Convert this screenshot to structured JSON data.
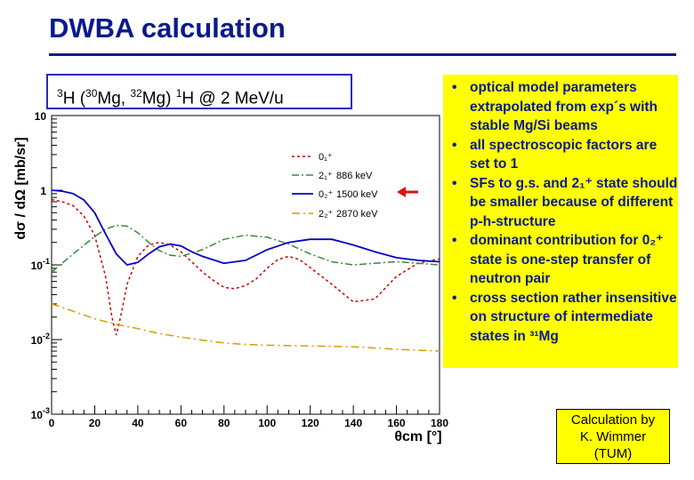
{
  "header": {
    "title": "DWBA calculation"
  },
  "reaction": {
    "t_sup": "3",
    "t": "H (",
    "mg30_sup": "30",
    "mg30": "Mg, ",
    "mg32_sup": "32",
    "mg32": "Mg) ",
    "h1_sup": "1",
    "h1": "H @ 2 MeV/u"
  },
  "bullets": [
    "optical model parameters extrapolated from exp´s with stable Mg/Si beams",
    "all spectroscopic factors are set to 1",
    "SFs to g.s. and 2₁⁺ state should be smaller because of different p-h-structure",
    "dominant contribution for 0₂⁺ state is one-step transfer of neutron pair",
    "cross section rather insensitive on structure of intermediate states in ³¹Mg"
  ],
  "credit": {
    "line1": "Calculation by",
    "line2": "K. Wimmer",
    "line3": "(TUM)"
  },
  "colors": {
    "title": "#0a1a8c",
    "box": "#ffff00",
    "arrow": "#dd1111"
  },
  "chart_data": {
    "type": "line",
    "title": "",
    "xlabel": "θcm [°]",
    "ylabel": "dσ / dΩ [mb/sr]",
    "xlim": [
      0,
      180
    ],
    "ylim": [
      0.001,
      10
    ],
    "yscale": "log",
    "x_ticks": [
      "0",
      "20",
      "40",
      "60",
      "80",
      "100",
      "120",
      "140",
      "160",
      "180"
    ],
    "y_ticks": [
      {
        "value": 10,
        "label": "10",
        "exp": ""
      },
      {
        "value": 1,
        "label": "1",
        "exp": ""
      },
      {
        "value": 0.1,
        "label": "10",
        "exp": "-1"
      },
      {
        "value": 0.01,
        "label": "10",
        "exp": "-2"
      },
      {
        "value": 0.001,
        "label": "10",
        "exp": "-3"
      }
    ],
    "series": [
      {
        "name": "0₁⁺",
        "energy": "",
        "color": "#cc0000",
        "dash": "3,3",
        "x": [
          0,
          5,
          10,
          15,
          20,
          25,
          28,
          30,
          32,
          35,
          40,
          45,
          50,
          55,
          60,
          65,
          70,
          75,
          80,
          85,
          90,
          95,
          100,
          105,
          110,
          115,
          120,
          130,
          140,
          150,
          160,
          170,
          180
        ],
        "y": [
          0.75,
          0.7,
          0.62,
          0.45,
          0.25,
          0.07,
          0.02,
          0.0115,
          0.02,
          0.055,
          0.13,
          0.185,
          0.2,
          0.185,
          0.15,
          0.11,
          0.08,
          0.062,
          0.05,
          0.048,
          0.053,
          0.065,
          0.09,
          0.118,
          0.13,
          0.118,
          0.092,
          0.055,
          0.032,
          0.035,
          0.07,
          0.105,
          0.12
        ]
      },
      {
        "name": "2₁⁺",
        "energy": "886 keV",
        "color": "#3a8a3a",
        "dash": "8,3,2,3",
        "x": [
          0,
          10,
          20,
          25,
          30,
          35,
          40,
          45,
          50,
          55,
          60,
          70,
          80,
          90,
          100,
          110,
          120,
          130,
          140,
          150,
          160,
          170,
          180
        ],
        "y": [
          0.08,
          0.14,
          0.24,
          0.3,
          0.34,
          0.33,
          0.27,
          0.2,
          0.155,
          0.135,
          0.13,
          0.16,
          0.22,
          0.25,
          0.235,
          0.19,
          0.14,
          0.11,
          0.1,
          0.105,
          0.11,
          0.105,
          0.1
        ]
      },
      {
        "name": "0₂⁺",
        "energy": "1500 keV",
        "color": "#0000cc",
        "dash": "",
        "x": [
          0,
          5,
          10,
          15,
          20,
          25,
          30,
          35,
          40,
          45,
          50,
          55,
          60,
          65,
          70,
          80,
          90,
          100,
          110,
          120,
          130,
          140,
          150,
          160,
          170,
          180
        ],
        "y": [
          1.0,
          0.97,
          0.9,
          0.74,
          0.5,
          0.26,
          0.14,
          0.1,
          0.108,
          0.14,
          0.175,
          0.19,
          0.18,
          0.15,
          0.13,
          0.105,
          0.115,
          0.16,
          0.2,
          0.22,
          0.22,
          0.185,
          0.15,
          0.125,
          0.115,
          0.11
        ]
      },
      {
        "name": "2₂⁺",
        "energy": "2870 keV",
        "color": "#dd9900",
        "dash": "9,4,2,4",
        "x": [
          0,
          10,
          20,
          30,
          40,
          50,
          60,
          70,
          80,
          90,
          100,
          110,
          120,
          130,
          140,
          150,
          160,
          170,
          180
        ],
        "y": [
          0.03,
          0.024,
          0.019,
          0.016,
          0.014,
          0.012,
          0.0108,
          0.0098,
          0.009,
          0.0086,
          0.0084,
          0.0083,
          0.0082,
          0.0081,
          0.008,
          0.0077,
          0.0074,
          0.0072,
          0.007
        ]
      }
    ]
  }
}
